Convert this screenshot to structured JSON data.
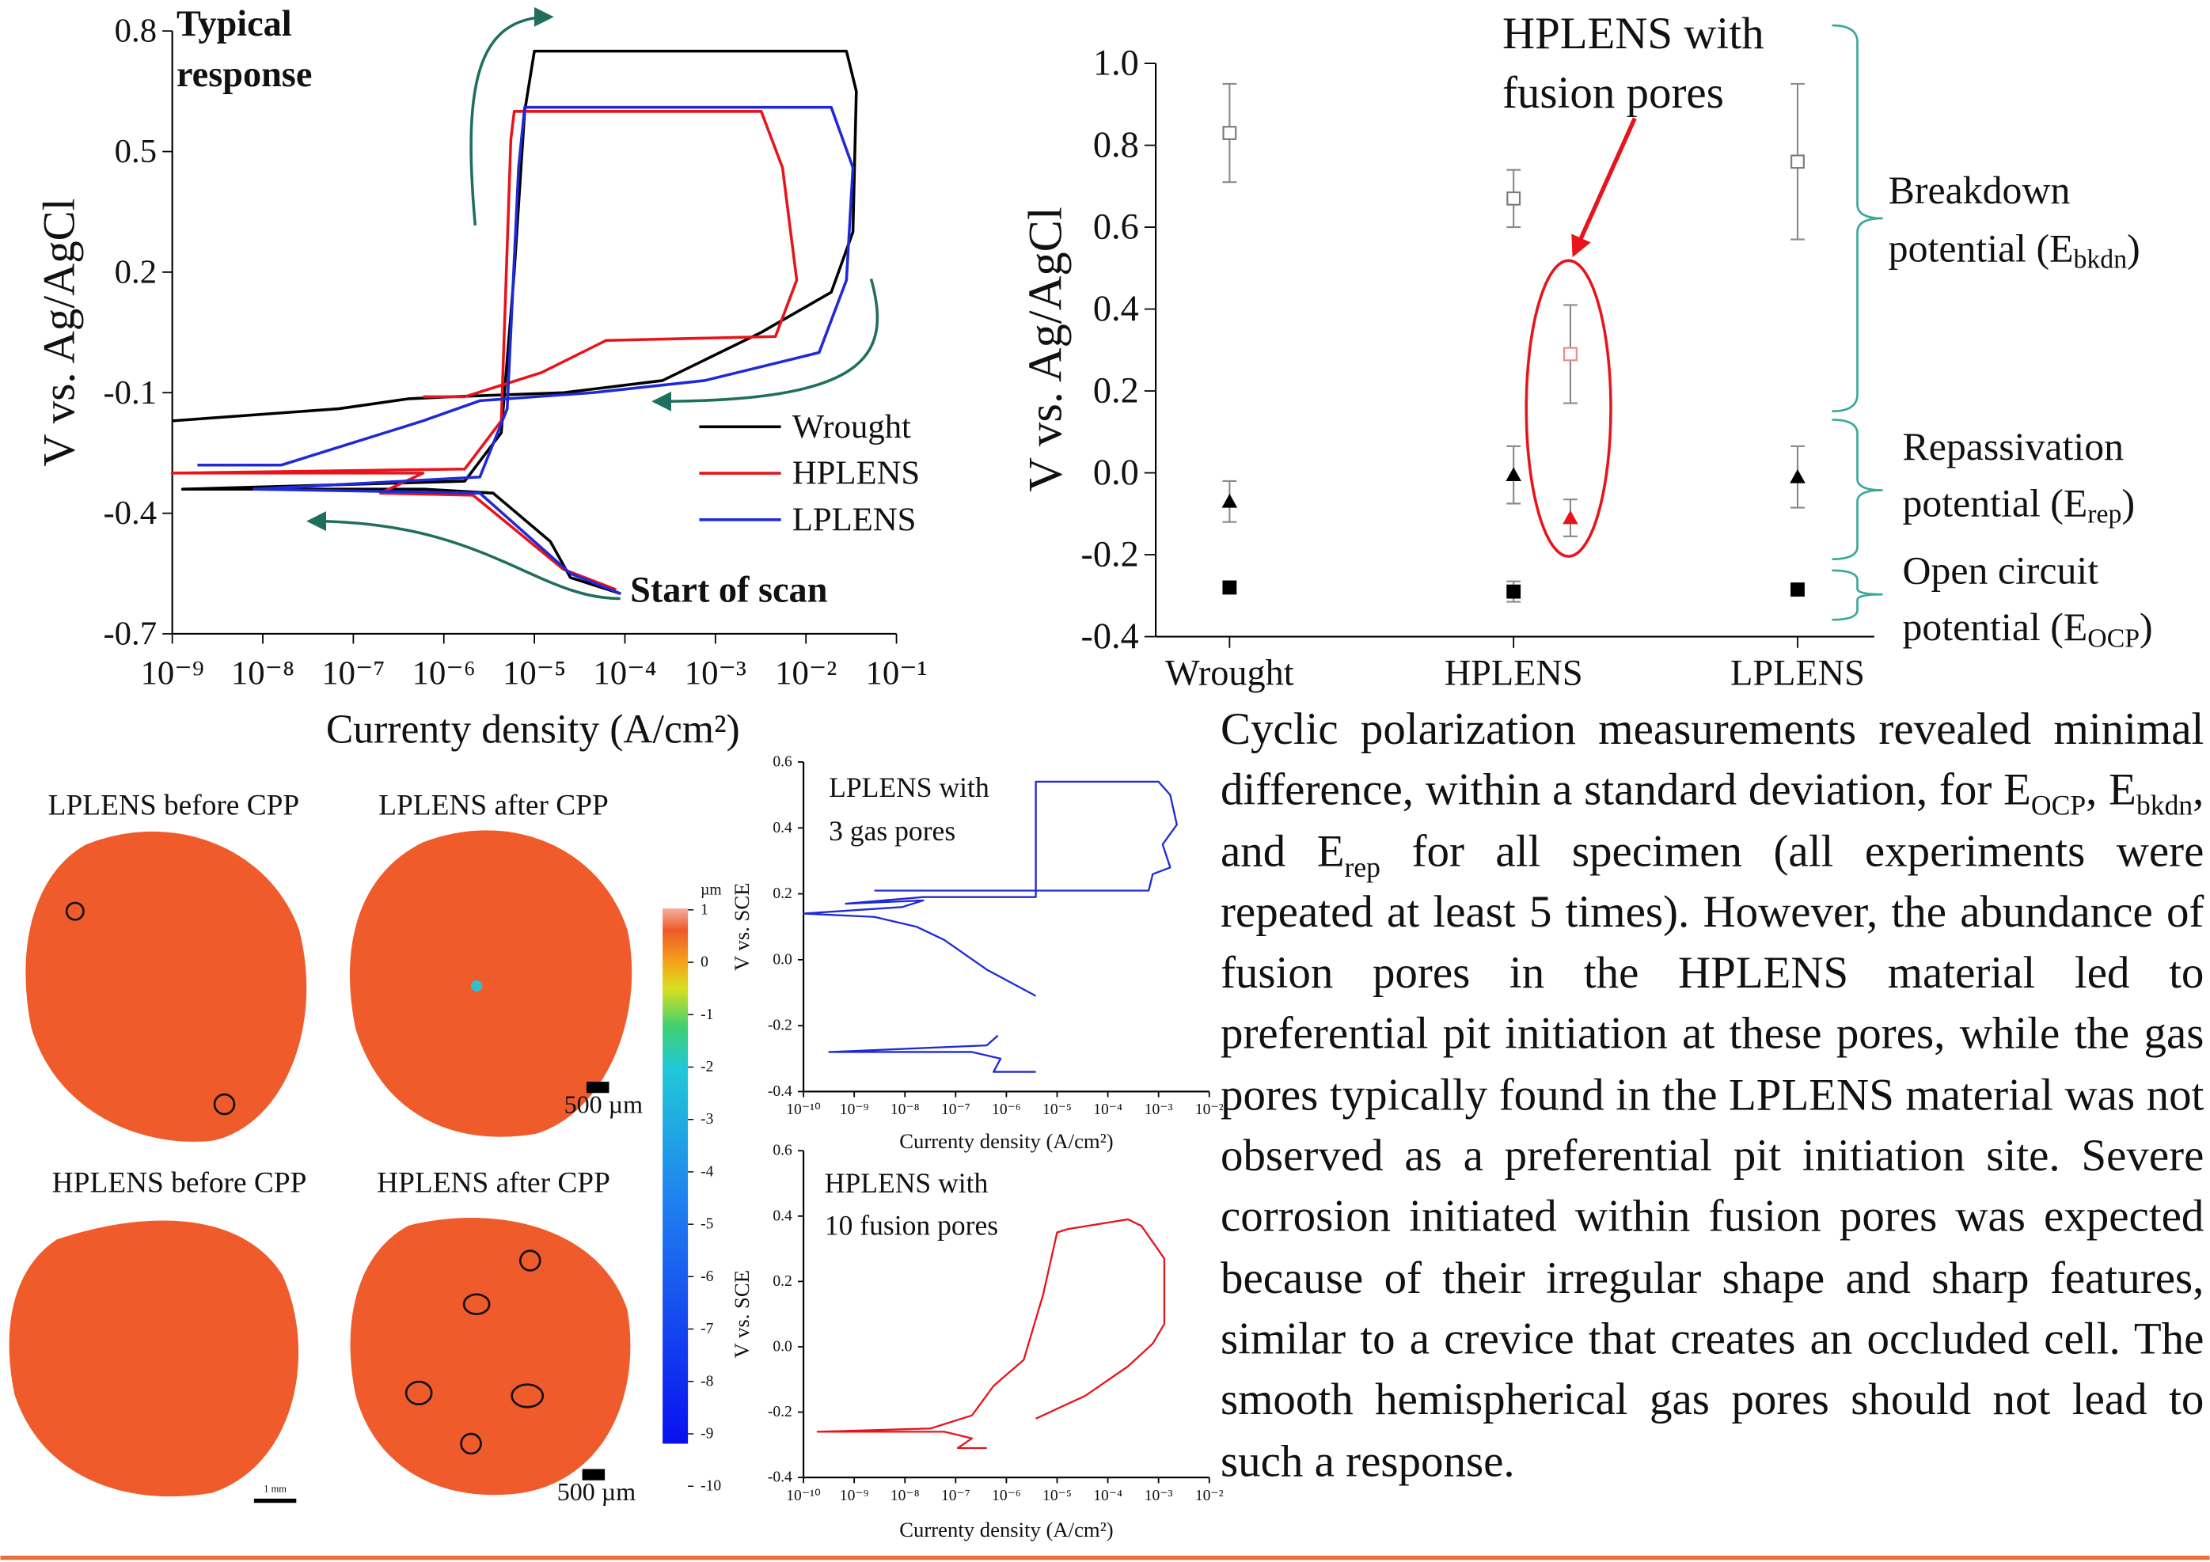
{
  "chart_data": [
    {
      "type": "line",
      "xscale": "log",
      "xlabel": "Currenty density (A/cm²)",
      "ylabel": "V vs. Ag/AgCl",
      "annotations": [
        [
          "Typical",
          "response"
        ],
        [
          "Start of scan"
        ]
      ],
      "xlim": [
        1e-09,
        0.1
      ],
      "xticks": [
        {
          "value": 1e-09,
          "label": "10⁻⁹"
        },
        {
          "value": 1e-08,
          "label": "10⁻⁸"
        },
        {
          "value": 1e-07,
          "label": "10⁻⁷"
        },
        {
          "value": 1e-06,
          "label": "10⁻⁶"
        },
        {
          "value": 1e-05,
          "label": "10⁻⁵"
        },
        {
          "value": 0.0001,
          "label": "10⁻⁴"
        },
        {
          "value": 0.001,
          "label": "10⁻³"
        },
        {
          "value": 0.01,
          "label": "10⁻²"
        },
        {
          "value": 0.1,
          "label": "10⁻¹"
        }
      ],
      "ylim": [
        -0.7,
        0.8
      ],
      "yticks": [
        -0.7,
        -0.4,
        -0.1,
        0.2,
        0.5,
        0.8
      ],
      "legend": "lower right",
      "series": [
        {
          "name": "Wrought",
          "color": "#000000",
          "x": [
            9e-05,
            2.5e-05,
            1.5e-05,
            3.5e-06,
            6e-07,
            1.3e-09,
            1.7e-06,
            4.3e-06,
            6e-06,
            7.8e-06,
            1e-05,
            0.028,
            0.036,
            0.033,
            0.019,
            0.0032,
            0.00026,
            2.1e-05,
            1.2e-06,
            4.1e-07,
            6.9e-08,
            1e-09
          ],
          "values": [
            -0.6,
            -0.56,
            -0.47,
            -0.35,
            -0.34,
            -0.34,
            -0.32,
            -0.2,
            0.2,
            0.6,
            0.75,
            0.75,
            0.65,
            0.3,
            0.15,
            0.05,
            -0.07,
            -0.1,
            -0.11,
            -0.115,
            -0.14,
            -0.17
          ]
        },
        {
          "name": "HPLENS",
          "color": "#e8141b",
          "x": [
            8e-05,
            2.1e-05,
            2.1e-06,
            2e-07,
            5.9e-07,
            1e-09,
            1.7e-06,
            4.3e-06,
            5.5e-06,
            6e-06,
            0.0032,
            0.0055,
            0.0079,
            0.0046,
            6.2e-05,
            1.2e-05,
            1.7e-06,
            5.9e-07
          ],
          "values": [
            -0.59,
            -0.54,
            -0.355,
            -0.35,
            -0.3,
            -0.3,
            -0.29,
            -0.17,
            0.53,
            0.6,
            0.6,
            0.46,
            0.18,
            0.04,
            0.03,
            -0.05,
            -0.11,
            -0.11
          ]
        },
        {
          "name": "LPLENS",
          "color": "#1f2ad6",
          "x": [
            9e-05,
            2.5e-05,
            2.5e-06,
            8e-09,
            2.5e-06,
            5e-06,
            6.7e-06,
            7.8e-06,
            0.019,
            0.033,
            0.028,
            0.014,
            0.00076,
            4.4e-05,
            2.5e-06,
            5.9e-07,
            1.6e-08,
            1.9e-09
          ],
          "values": [
            -0.6,
            -0.55,
            -0.35,
            -0.34,
            -0.31,
            -0.14,
            0.46,
            0.61,
            0.61,
            0.46,
            0.18,
            0,
            -0.07,
            -0.1,
            -0.12,
            -0.17,
            -0.28,
            -0.28
          ]
        }
      ]
    },
    {
      "type": "scatter",
      "ylabel": "V vs. Ag/AgCl",
      "annotations": [
        [
          "HPLENS with",
          "fusion pores"
        ]
      ],
      "xlim": [
        -0.26,
        2.27
      ],
      "xticks": [
        {
          "value": 0,
          "label": "Wrought"
        },
        {
          "value": 1,
          "label": "HPLENS"
        },
        {
          "value": 2,
          "label": "LPLENS"
        }
      ],
      "ylim": [
        -0.4,
        1.0
      ],
      "yticks": [
        -0.4,
        -0.2,
        {
          "value": 0,
          "label": "0.0"
        },
        0.2,
        0.4,
        0.6,
        0.8,
        {
          "value": 1,
          "label": "1.0"
        }
      ],
      "error_color": "#8a8a8a",
      "brackets": [
        {
          "lines": [
            "Breakdown",
            "potential (E"
          ],
          "sub": "bkdn",
          "end": ")"
        },
        {
          "lines": [
            "Repassivation",
            "potential (E"
          ],
          "sub": "rep",
          "end": ")"
        },
        {
          "lines": [
            "Open circuit",
            "potential (E"
          ],
          "sub": "OCP",
          "end": ")"
        }
      ],
      "series": [
        {
          "marker": "open-square",
          "color": "#7a7a7a",
          "x": [
            0,
            1,
            2
          ],
          "values": [
            0.83,
            0.67,
            0.76
          ],
          "errors": [
            0.12,
            0.07,
            0.19
          ]
        },
        {
          "marker": "triangle",
          "color": "#000000",
          "x": [
            0,
            1,
            2
          ],
          "values": [
            -0.07,
            -0.005,
            -0.01
          ],
          "errors": [
            0.05,
            0.07,
            0.075
          ]
        },
        {
          "marker": "square",
          "color": "#000000",
          "x": [
            0,
            1,
            2
          ],
          "values": [
            -0.28,
            -0.29,
            -0.285
          ],
          "errors": [
            0.015,
            0.025,
            0.01
          ]
        },
        {
          "marker": "open-square",
          "color": "#e88a8a",
          "x": [
            1.2
          ],
          "values": [
            0.29
          ],
          "errors": [
            0.12
          ]
        },
        {
          "marker": "triangle",
          "color": "#e8141b",
          "x": [
            1.2
          ],
          "values": [
            -0.11
          ],
          "errors": [
            0.045
          ]
        }
      ]
    },
    {
      "type": "line",
      "xscale": "log",
      "xlabel": "Currenty density (A/cm²)",
      "ylabel": "V vs. SCE",
      "annotations": [
        [
          "LPLENS with",
          "3 gas pores"
        ]
      ],
      "xlim": [
        1e-10,
        0.01
      ],
      "xticks": [
        {
          "value": 1e-10,
          "label": "10⁻¹⁰"
        },
        {
          "value": 1e-09,
          "label": "10⁻⁹"
        },
        {
          "value": 1e-08,
          "label": "10⁻⁸"
        },
        {
          "value": 1e-07,
          "label": "10⁻⁷"
        },
        {
          "value": 1e-06,
          "label": "10⁻⁶"
        },
        {
          "value": 1e-05,
          "label": "10⁻⁵"
        },
        {
          "value": 0.0001,
          "label": "10⁻⁴"
        },
        {
          "value": 0.001,
          "label": "10⁻³"
        },
        {
          "value": 0.01,
          "label": "10⁻²"
        }
      ],
      "ylim": [
        -0.4,
        0.6
      ],
      "yticks": [
        -0.4,
        -0.2,
        {
          "value": 0,
          "label": "0.0"
        },
        0.2,
        0.4,
        0.6
      ],
      "series": [
        {
          "color": "#1f2ad6",
          "x": [
            3.8e-06,
            4.1e-07,
            6e-08,
            1.7e-08,
            2.5e-09,
            1e-10,
            8.8e-09,
            2.3e-08,
            6.8e-10,
            2.3e-08,
            3.8e-06,
            3.8e-06,
            0.001,
            0.0017,
            0.0023,
            0.0012,
            0.0017,
            0.00077,
            0.00064,
            4.1e-07,
            2.5e-09,
            null,
            3.8e-06,
            5.6e-07,
            7.7e-07,
            2.1e-07,
            3.2e-10,
            4.1e-07,
            6.8e-07
          ],
          "values": [
            -0.11,
            -0.03,
            0.06,
            0.1,
            0.13,
            0.14,
            0.16,
            0.18,
            0.17,
            0.19,
            0.19,
            0.54,
            0.54,
            0.5,
            0.41,
            0.35,
            0.28,
            0.26,
            0.21,
            0.21,
            0.21,
            null,
            -0.34,
            -0.34,
            -0.3,
            -0.28,
            -0.28,
            -0.26,
            -0.23
          ]
        }
      ]
    },
    {
      "type": "line",
      "xscale": "log",
      "xlabel": "Currenty density (A/cm²)",
      "ylabel": "V vs. SCE",
      "annotations": [
        [
          "HPLENS with",
          "10 fusion pores"
        ]
      ],
      "xlim": [
        1e-10,
        0.01
      ],
      "xticks": [
        {
          "value": 1e-10,
          "label": "10⁻¹⁰"
        },
        {
          "value": 1e-09,
          "label": "10⁻⁹"
        },
        {
          "value": 1e-08,
          "label": "10⁻⁸"
        },
        {
          "value": 1e-07,
          "label": "10⁻⁷"
        },
        {
          "value": 1e-06,
          "label": "10⁻⁶"
        },
        {
          "value": 1e-05,
          "label": "10⁻⁵"
        },
        {
          "value": 0.0001,
          "label": "10⁻⁴"
        },
        {
          "value": 0.001,
          "label": "10⁻³"
        },
        {
          "value": 0.01,
          "label": "10⁻²"
        }
      ],
      "ylim": [
        -0.4,
        0.6
      ],
      "yticks": [
        -0.4,
        -0.2,
        {
          "value": 0,
          "label": "0.0"
        },
        0.2,
        0.4,
        0.6
      ],
      "series": [
        {
          "color": "#e8141b",
          "x": [
            4.1e-07,
            1.1e-07,
            2.1e-07,
            6e-08,
            1.9e-10,
            3.2e-08,
            2.1e-07,
            5.6e-07,
            1.1e-06,
            2.2e-06,
            2.4e-06,
            5.3e-06,
            1e-05,
            1.6e-05,
            0.00025,
            0.00046,
            0.0013,
            0.0013,
            0.00077,
            0.00025,
            3.6e-05,
            3.8e-06
          ],
          "values": [
            -0.31,
            -0.31,
            -0.28,
            -0.26,
            -0.26,
            -0.25,
            -0.21,
            -0.12,
            -0.08,
            -0.04,
            -0.02,
            0.16,
            0.35,
            0.36,
            0.39,
            0.37,
            0.27,
            0.07,
            0.01,
            -0.06,
            -0.15,
            -0.22
          ]
        }
      ]
    }
  ],
  "images": {
    "labels": [
      "LPLENS before CPP",
      "LPLENS after CPP",
      "HPLENS before CPP",
      "HPLENS after CPP"
    ],
    "scale_bars": [
      "500 µm",
      "500 µm",
      "1 mm"
    ],
    "colorbar": {
      "unit": "µm",
      "ticks": [
        1,
        0,
        -1,
        -2,
        -3,
        -4,
        -5,
        -6,
        -7,
        -8,
        -9,
        -10
      ]
    }
  },
  "paragraph": [
    {
      "text": "Cyclic polarization measurements revealed minimal difference, within a standard deviation, for E"
    },
    {
      "sub": "OCP"
    },
    {
      "text": ", E"
    },
    {
      "sub": "bkdn"
    },
    {
      "text": ", and E"
    },
    {
      "sub": "rep"
    },
    {
      "text": " for all specimen (all experiments were repeated at least 5 times). However, the abundance of fusion pores in the HPLENS material led to preferential pit initiation at these pores, while the gas pores typically found in the LPLENS material was not observed as a preferential pit initiation site. Severe corrosion initiated within fusion pores was expected because of their irregular shape and sharp features, similar to a crevice that creates an occluded cell. The smooth hemispherical gas pores should not lead to such a response."
    }
  ]
}
